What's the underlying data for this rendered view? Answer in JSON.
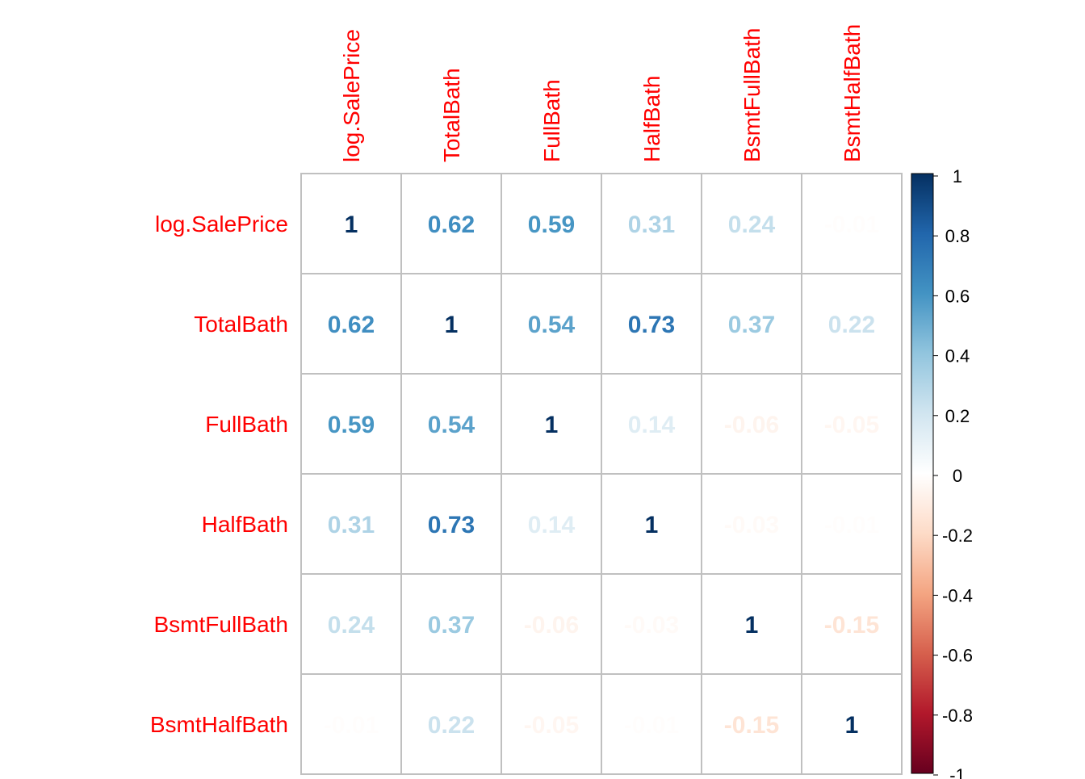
{
  "chart_data": {
    "type": "heatmap",
    "variables": [
      "log.SalePrice",
      "TotalBath",
      "FullBath",
      "HalfBath",
      "BsmtFullBath",
      "BsmtHalfBath"
    ],
    "matrix": [
      [
        1,
        0.62,
        0.59,
        0.31,
        0.24,
        -0.01
      ],
      [
        0.62,
        1,
        0.54,
        0.73,
        0.37,
        0.22
      ],
      [
        0.59,
        0.54,
        1,
        0.14,
        -0.06,
        -0.05
      ],
      [
        0.31,
        0.73,
        0.14,
        1,
        -0.03,
        -0.01
      ],
      [
        0.24,
        0.37,
        -0.06,
        -0.03,
        1,
        -0.15
      ],
      [
        -0.01,
        0.22,
        -0.05,
        -0.01,
        -0.15,
        1
      ]
    ],
    "colorbar": {
      "min": -1,
      "max": 1,
      "ticks": [
        "1",
        "0.8",
        "0.6",
        "0.4",
        "0.2",
        "0",
        "-0.2",
        "-0.4",
        "-0.6",
        "-0.8",
        "-1"
      ],
      "tick_values": [
        1,
        0.8,
        0.6,
        0.4,
        0.2,
        0,
        -0.2,
        -0.4,
        -0.6,
        -0.8,
        -1
      ]
    },
    "colors": {
      "label_color": "#ff0000",
      "grid_color": "#c0c0c0",
      "scale": [
        "#67001f",
        "#b2182b",
        "#d6604d",
        "#f4a582",
        "#fddbc7",
        "#ffffff",
        "#d1e5f0",
        "#92c5de",
        "#4393c3",
        "#2166ac",
        "#053061"
      ]
    }
  }
}
